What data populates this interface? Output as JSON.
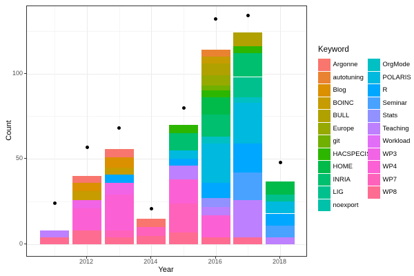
{
  "axes": {
    "x": {
      "title": "Year",
      "ticks": [
        "2012",
        "2014",
        "2016",
        "2018"
      ],
      "tick_years": [
        2012,
        2014,
        2016,
        2018
      ]
    },
    "y": {
      "title": "Count",
      "ticks": [
        "0",
        "50",
        "100"
      ],
      "tick_values": [
        0,
        50,
        100
      ]
    }
  },
  "legend": {
    "title": "Keyword",
    "columns": [
      [
        "Argonne",
        "autotuning",
        "Blog",
        "BOINC",
        "BULL",
        "Europe",
        "git",
        "HACSPECIS",
        "HOME",
        "INRIA",
        "LIG",
        "noexport"
      ],
      [
        "OrgMode",
        "POLARIS",
        "R",
        "Seminar",
        "Stats",
        "Teaching",
        "Workload",
        "WP3",
        "WP4",
        "WP7",
        "WP8"
      ]
    ]
  },
  "palette": {
    "Argonne": "#F8766D",
    "autotuning": "#EA8331",
    "Blog": "#DB9000",
    "BOINC": "#C69C00",
    "BULL": "#B0A100",
    "Europe": "#96A900",
    "git": "#6FB000",
    "HACSPECIS": "#2CB600",
    "HOME": "#00BB4A",
    "INRIA": "#00BF6E",
    "LIG": "#00C18D",
    "noexport": "#00C1A9",
    "OrgMode": "#00C0C4",
    "POLARIS": "#00B9DF",
    "R": "#00A7FF",
    "Seminar": "#49A2FF",
    "Stats": "#9192FF",
    "Teaching": "#BD80FF",
    "Workload": "#E26EF7",
    "WP3": "#F164E6",
    "WP4": "#FB61D4",
    "WP7": "#FF62BB",
    "WP8": "#FF6C91"
  },
  "point_color": "#000000",
  "chart_data": {
    "type": "bar",
    "stacked": true,
    "title": "",
    "xlabel": "Year",
    "ylabel": "Count",
    "x_range": [
      2010.1,
      2018.8
    ],
    "ylim": [
      -7,
      139
    ],
    "grid": "on",
    "legend_position": "right",
    "stacks": [
      {
        "year": 2011,
        "total": 8,
        "segments": [
          {
            "keyword": "WP8",
            "value": 4
          },
          {
            "keyword": "Teaching",
            "value": 4
          }
        ]
      },
      {
        "year": 2012,
        "total": 40,
        "segments": [
          {
            "keyword": "WP8",
            "value": 8
          },
          {
            "keyword": "WP4",
            "value": 13
          },
          {
            "keyword": "WP3",
            "value": 5
          },
          {
            "keyword": "BOINC",
            "value": 5
          },
          {
            "keyword": "Blog",
            "value": 5
          },
          {
            "keyword": "Argonne",
            "value": 4
          }
        ]
      },
      {
        "year": 2013,
        "total": 56,
        "segments": [
          {
            "keyword": "WP8",
            "value": 4
          },
          {
            "keyword": "WP7",
            "value": 4
          },
          {
            "keyword": "WP4",
            "value": 21
          },
          {
            "keyword": "WP3",
            "value": 7
          },
          {
            "keyword": "R",
            "value": 5
          },
          {
            "keyword": "BOINC",
            "value": 4
          },
          {
            "keyword": "Blog",
            "value": 6
          },
          {
            "keyword": "Argonne",
            "value": 5
          }
        ]
      },
      {
        "year": 2014,
        "total": 15,
        "segments": [
          {
            "keyword": "WP8",
            "value": 5
          },
          {
            "keyword": "WP7",
            "value": 5
          },
          {
            "keyword": "Argonne",
            "value": 5
          }
        ]
      },
      {
        "year": 2015,
        "total": 70,
        "segments": [
          {
            "keyword": "WP8",
            "value": 7
          },
          {
            "keyword": "WP7",
            "value": 17
          },
          {
            "keyword": "WP4",
            "value": 14
          },
          {
            "keyword": "Teaching",
            "value": 8
          },
          {
            "keyword": "R",
            "value": 4
          },
          {
            "keyword": "POLARIS",
            "value": 5
          },
          {
            "keyword": "INRIA",
            "value": 10
          },
          {
            "keyword": "HACSPECIS",
            "value": 5
          }
        ]
      },
      {
        "year": 2016,
        "total": 114,
        "segments": [
          {
            "keyword": "WP8",
            "value": 4
          },
          {
            "keyword": "WP4",
            "value": 13
          },
          {
            "keyword": "Teaching",
            "value": 5
          },
          {
            "keyword": "Stats",
            "value": 5
          },
          {
            "keyword": "R",
            "value": 9
          },
          {
            "keyword": "POLARIS",
            "value": 23
          },
          {
            "keyword": "OrgMode",
            "value": 4
          },
          {
            "keyword": "INRIA",
            "value": 13
          },
          {
            "keyword": "HOME",
            "value": 10
          },
          {
            "keyword": "HACSPECIS",
            "value": 4
          },
          {
            "keyword": "git",
            "value": 3
          },
          {
            "keyword": "Europe",
            "value": 6
          },
          {
            "keyword": "BULL",
            "value": 7
          },
          {
            "keyword": "BOINC",
            "value": 4
          },
          {
            "keyword": "autotuning",
            "value": 4
          }
        ]
      },
      {
        "year": 2017,
        "total": 124,
        "segments": [
          {
            "keyword": "WP8",
            "value": 4
          },
          {
            "keyword": "Teaching",
            "value": 22
          },
          {
            "keyword": "Seminar",
            "value": 16
          },
          {
            "keyword": "R",
            "value": 17
          },
          {
            "keyword": "POLARIS",
            "value": 24
          },
          {
            "keyword": "OrgMode",
            "value": 3
          },
          {
            "keyword": "LIG",
            "value": 12
          },
          {
            "keyword": "INRIA",
            "value": 14
          },
          {
            "keyword": "HACSPECIS",
            "value": 4
          },
          {
            "keyword": "BULL",
            "value": 8
          }
        ]
      },
      {
        "year": 2018,
        "total": 37,
        "segments": [
          {
            "keyword": "Teaching",
            "value": 4
          },
          {
            "keyword": "Seminar",
            "value": 7
          },
          {
            "keyword": "R",
            "value": 7
          },
          {
            "keyword": "POLARIS",
            "value": 7
          },
          {
            "keyword": "LIG",
            "value": 4
          },
          {
            "keyword": "HOME",
            "value": 8
          }
        ]
      }
    ],
    "points": [
      {
        "year": 2011,
        "value": 24
      },
      {
        "year": 2012,
        "value": 57
      },
      {
        "year": 2013,
        "value": 68
      },
      {
        "year": 2014,
        "value": 21
      },
      {
        "year": 2015,
        "value": 80
      },
      {
        "year": 2016,
        "value": 132
      },
      {
        "year": 2017,
        "value": 134
      },
      {
        "year": 2018,
        "value": 48
      }
    ]
  }
}
